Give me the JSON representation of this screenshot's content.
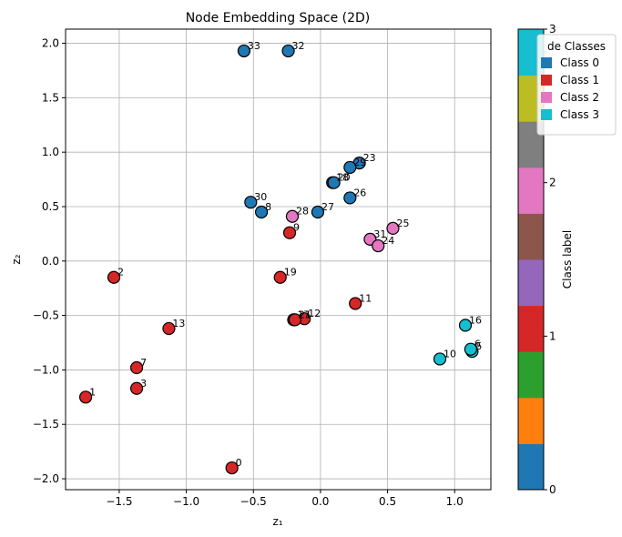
{
  "chart_data": {
    "type": "scatter",
    "title": "Node Embedding Space (2D)",
    "xlabel": "z₁",
    "ylabel": "z₂",
    "xlim": [
      -1.9,
      1.27
    ],
    "ylim": [
      -2.1,
      2.13
    ],
    "xticks": [
      -1.5,
      -1.0,
      -0.5,
      0.0,
      0.5,
      1.0
    ],
    "xtick_labels": [
      "−1.5",
      "−1.0",
      "−0.5",
      "0.0",
      "0.5",
      "1.0"
    ],
    "yticks": [
      -2.0,
      -1.5,
      -1.0,
      -0.5,
      0.0,
      0.5,
      1.0,
      1.5,
      2.0
    ],
    "ytick_labels": [
      "−2.0",
      "−1.5",
      "−1.0",
      "−0.5",
      "0.0",
      "0.5",
      "1.0",
      "1.5",
      "2.0"
    ],
    "grid": true,
    "class_colors": [
      "#1f77b4",
      "#d62728",
      "#e377c2",
      "#17becf"
    ],
    "legend": {
      "title": "de Classes",
      "placement": "top-right",
      "entries": [
        "Class 0",
        "Class 1",
        "Class 2",
        "Class 3"
      ]
    },
    "colorbar": {
      "label": "Class label",
      "ticks": [
        0,
        1,
        2,
        3
      ],
      "tick_labels": [
        "0",
        "1",
        "2",
        "3"
      ],
      "segment_colors": [
        "#1f77b4",
        "#ff7f0e",
        "#2ca02c",
        "#d62728",
        "#9467bd",
        "#8c564b",
        "#e377c2",
        "#7f7f7f",
        "#bcbd22",
        "#17becf"
      ]
    },
    "points": [
      {
        "label": "0",
        "x": -0.66,
        "y": -1.9,
        "cls": 1
      },
      {
        "label": "1",
        "x": -1.75,
        "y": -1.25,
        "cls": 1
      },
      {
        "label": "2",
        "x": -1.54,
        "y": -0.15,
        "cls": 1
      },
      {
        "label": "3",
        "x": -1.37,
        "y": -1.17,
        "cls": 1
      },
      {
        "label": "7",
        "x": -1.37,
        "y": -0.98,
        "cls": 1
      },
      {
        "label": "13",
        "x": -1.13,
        "y": -0.62,
        "cls": 1
      },
      {
        "label": "19",
        "x": -0.3,
        "y": -0.15,
        "cls": 1
      },
      {
        "label": "9",
        "x": -0.23,
        "y": 0.26,
        "cls": 1
      },
      {
        "label": "11",
        "x": 0.26,
        "y": -0.39,
        "cls": 1
      },
      {
        "label": "12",
        "x": -0.12,
        "y": -0.53,
        "cls": 1
      },
      {
        "label": "17",
        "x": -0.2,
        "y": -0.54,
        "cls": 1
      },
      {
        "label": "21",
        "x": -0.19,
        "y": -0.54,
        "cls": 1
      },
      {
        "label": "33",
        "x": -0.57,
        "y": 1.93,
        "cls": 0
      },
      {
        "label": "32",
        "x": -0.24,
        "y": 1.93,
        "cls": 0
      },
      {
        "label": "23",
        "x": 0.29,
        "y": 0.9,
        "cls": 0
      },
      {
        "label": "29",
        "x": 0.22,
        "y": 0.86,
        "cls": 0
      },
      {
        "label": "18",
        "x": 0.09,
        "y": 0.72,
        "cls": 0
      },
      {
        "label": "20",
        "x": 0.1,
        "y": 0.72,
        "cls": 0
      },
      {
        "label": "26",
        "x": 0.22,
        "y": 0.58,
        "cls": 0
      },
      {
        "label": "30",
        "x": -0.52,
        "y": 0.54,
        "cls": 0
      },
      {
        "label": "8",
        "x": -0.44,
        "y": 0.45,
        "cls": 0
      },
      {
        "label": "27",
        "x": -0.02,
        "y": 0.45,
        "cls": 0
      },
      {
        "label": "28",
        "x": -0.21,
        "y": 0.41,
        "cls": 2
      },
      {
        "label": "25",
        "x": 0.54,
        "y": 0.3,
        "cls": 2
      },
      {
        "label": "31",
        "x": 0.37,
        "y": 0.2,
        "cls": 2
      },
      {
        "label": "24",
        "x": 0.43,
        "y": 0.14,
        "cls": 2
      },
      {
        "label": "16",
        "x": 1.08,
        "y": -0.59,
        "cls": 3
      },
      {
        "label": "5",
        "x": 1.13,
        "y": -0.83,
        "cls": 3
      },
      {
        "label": "6",
        "x": 1.12,
        "y": -0.81,
        "cls": 3
      },
      {
        "label": "10",
        "x": 0.89,
        "y": -0.9,
        "cls": 3
      }
    ]
  }
}
